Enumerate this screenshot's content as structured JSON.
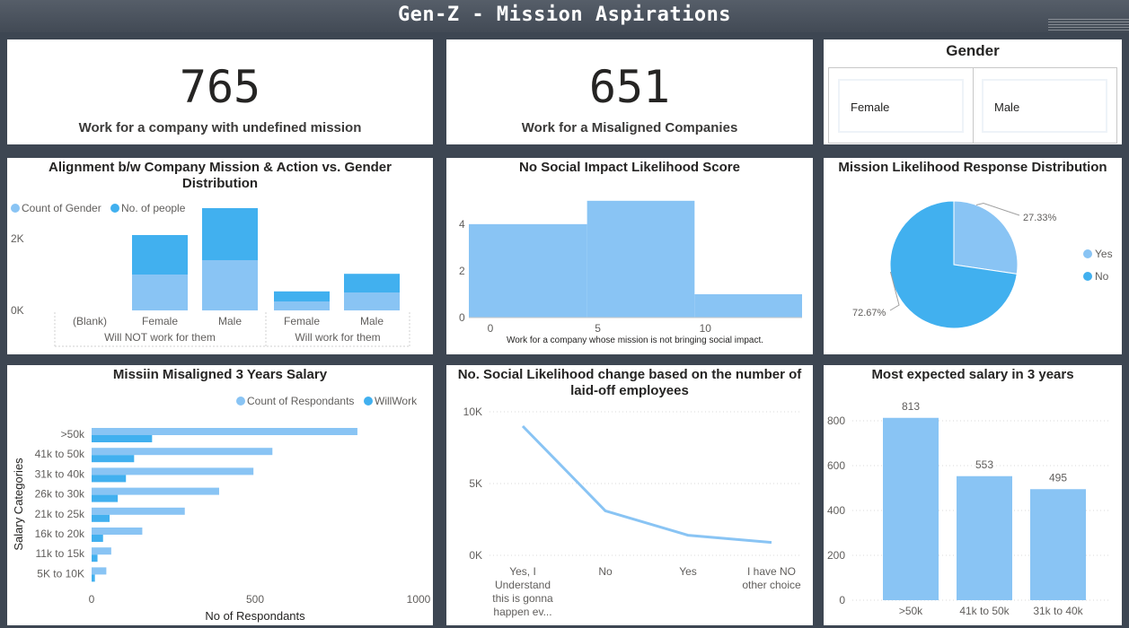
{
  "header": {
    "title": "Gen-Z - Mission Aspirations"
  },
  "kpis": [
    {
      "value": "765",
      "label": "Work for a company with undefined mission"
    },
    {
      "value": "651",
      "label": "Work for a Misaligned Companies"
    }
  ],
  "gender_slicer": {
    "title": "Gender",
    "options": [
      "Female",
      "Male"
    ]
  },
  "colors": {
    "light": "#89c4f4",
    "dark": "#41b0ef",
    "grid": "#d9d9d9",
    "text": "#605e5c"
  },
  "chart_data": [
    {
      "id": "alignment",
      "type": "bar",
      "stacked": true,
      "title": "Alignment b/w Company Mission & Action vs. Gender Distribution",
      "legend_position": "top-left",
      "groups": [
        {
          "label": "Will NOT work for them",
          "categories": [
            "(Blank)",
            "Female",
            "Male"
          ]
        },
        {
          "label": "Will work for them",
          "categories": [
            "Female",
            "Male"
          ]
        }
      ],
      "series": [
        {
          "name": "Count of Gender",
          "values": [
            0,
            1000,
            1400,
            250,
            500
          ]
        },
        {
          "name": "No. of people",
          "values": [
            0,
            1100,
            1450,
            280,
            520
          ]
        }
      ],
      "y_ticks": [
        "0K",
        "2K"
      ],
      "ylim": [
        0,
        3000
      ]
    },
    {
      "id": "histogram",
      "type": "bar",
      "title": "No Social Impact Likelihood Score",
      "xlabel": "Work for a company whose mission is not bringing social impact.",
      "bins": [
        [
          -1,
          4.5
        ],
        [
          4.5,
          9.5
        ],
        [
          9.5,
          14.5
        ]
      ],
      "values": [
        4,
        5,
        1
      ],
      "x_ticks": [
        0,
        5,
        10
      ],
      "y_ticks": [
        0,
        2,
        4
      ],
      "xlim": [
        -1,
        14.5
      ],
      "ylim": [
        0,
        5.3
      ]
    },
    {
      "id": "pie",
      "type": "pie",
      "title": "Mission Likelihood Response Distribution",
      "legend_position": "right",
      "labels": [
        "Yes",
        "No"
      ],
      "values": [
        27.33,
        72.67
      ],
      "value_labels": [
        "27.33%",
        "72.67%"
      ]
    },
    {
      "id": "salary_misaligned",
      "type": "bar",
      "orientation": "horizontal",
      "title": "Missiin Misaligned 3 Years Salary",
      "legend_position": "top-right",
      "categories": [
        ">50k",
        "41k to 50k",
        "31k to 40k",
        "26k to 30k",
        "21k to 25k",
        "16k to 20k",
        "11k to 15k",
        "5K to 10K"
      ],
      "series": [
        {
          "name": "Count of Respondants",
          "values": [
            813,
            553,
            495,
            390,
            285,
            155,
            60,
            45
          ]
        },
        {
          "name": "WillWork",
          "values": [
            185,
            130,
            105,
            80,
            55,
            35,
            18,
            10
          ]
        }
      ],
      "xlabel": "No of Respondants",
      "ylabel": "Salary Categories",
      "x_ticks": [
        0,
        500,
        1000
      ],
      "xlim": [
        0,
        1000
      ]
    },
    {
      "id": "layoff_line",
      "type": "line",
      "title": "No. Social Likelihood change based on the number of laid-off employees",
      "categories": [
        "Yes, I Understand this is gonna happen ev...",
        "No",
        "Yes",
        "I have NO other choice"
      ],
      "values": [
        9000,
        3100,
        1400,
        900
      ],
      "y_ticks": [
        "0K",
        "5K",
        "10K"
      ],
      "ylim": [
        0,
        10000
      ]
    },
    {
      "id": "expected_salary",
      "type": "bar",
      "title": "Most expected salary in 3 years",
      "categories": [
        ">50k",
        "41k to 50k",
        "31k to 40k"
      ],
      "values": [
        813,
        553,
        495
      ],
      "y_ticks": [
        0,
        200,
        400,
        600,
        800
      ],
      "ylim": [
        0,
        880
      ]
    }
  ]
}
